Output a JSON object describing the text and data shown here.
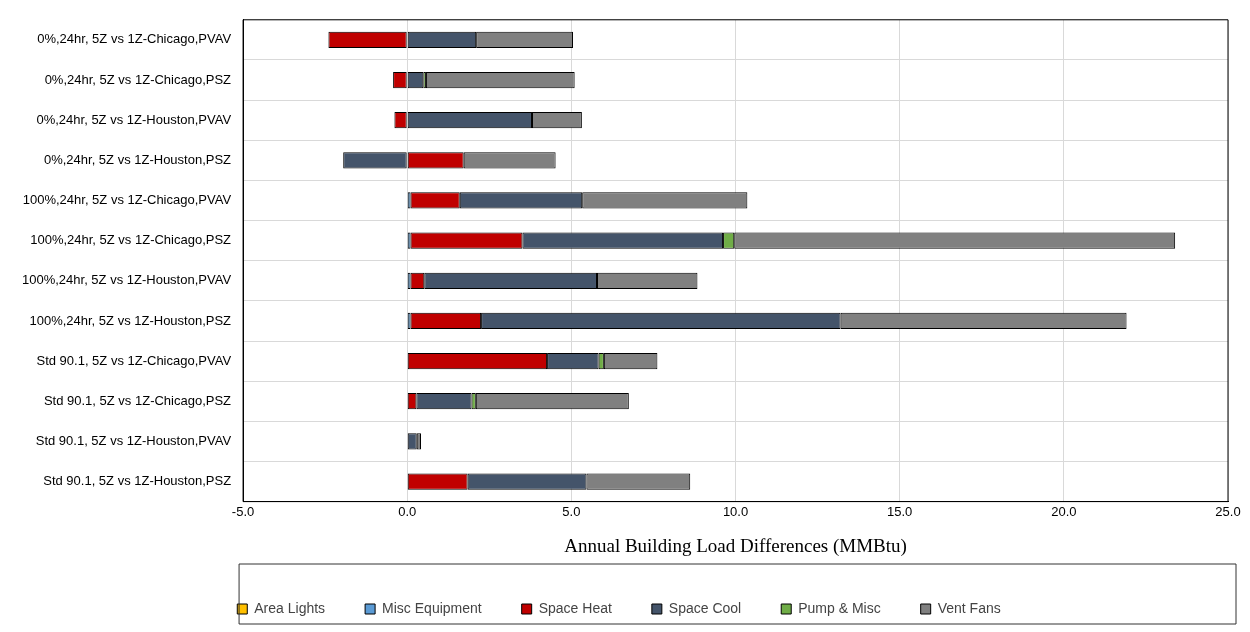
{
  "chart_data": {
    "type": "bar",
    "orientation": "horizontal",
    "stacked": true,
    "xlabel": "Annual Building Load Differences (MMBtu)",
    "categories": [
      "0%,24hr, 5Z vs 1Z-Chicago,PVAV",
      "0%,24hr, 5Z vs 1Z-Chicago,PSZ",
      "0%,24hr, 5Z vs 1Z-Houston,PVAV",
      "0%,24hr, 5Z vs 1Z-Houston,PSZ",
      "100%,24hr, 5Z vs 1Z-Chicago,PVAV",
      "100%,24hr, 5Z vs 1Z-Chicago,PSZ",
      "100%,24hr, 5Z vs 1Z-Houston,PVAV",
      "100%,24hr, 5Z vs 1Z-Houston,PSZ",
      "Std 90.1, 5Z vs 1Z-Chicago,PVAV",
      "Std 90.1, 5Z vs 1Z-Chicago,PSZ",
      "Std 90.1, 5Z vs 1Z-Houston,PVAV",
      "Std 90.1, 5Z vs 1Z-Houston,PSZ"
    ],
    "series": [
      {
        "name": "Area Lights",
        "color": "#ffc000",
        "values": [
          null,
          null,
          null,
          null,
          null,
          null,
          null,
          null,
          null,
          null,
          null,
          null
        ]
      },
      {
        "name": "Misc Equipment",
        "color": "#5b9bd5",
        "values": [
          null,
          null,
          null,
          null,
          0.1,
          0.1,
          0.1,
          0.1,
          null,
          null,
          null,
          null
        ]
      },
      {
        "name": "Space Heat",
        "color": "#c00000",
        "values": [
          -2.4,
          -0.43,
          -0.39,
          1.72,
          1.5,
          3.41,
          0.42,
          2.15,
          4.26,
          0.28,
          null,
          1.84
        ]
      },
      {
        "name": "Space Cool",
        "color": "#44546a",
        "values": [
          2.1,
          0.49,
          3.8,
          -1.95,
          3.73,
          6.11,
          5.26,
          10.95,
          1.57,
          1.68,
          0.29,
          3.62
        ]
      },
      {
        "name": "Pump & Misc",
        "color": "#70ad47",
        "values": [
          null,
          0.08,
          null,
          null,
          null,
          0.34,
          null,
          null,
          0.16,
          0.13,
          null,
          null
        ]
      },
      {
        "name": "Vent Fans",
        "color": "#808080",
        "values": [
          2.95,
          4.53,
          1.52,
          2.8,
          5.03,
          13.43,
          3.06,
          8.71,
          1.63,
          4.66,
          0.13,
          3.16
        ]
      }
    ],
    "xlim": [
      -5,
      25
    ],
    "xticks": [
      {
        "value": -5,
        "label": "-5.0"
      },
      {
        "value": 0,
        "label": "0.0"
      },
      {
        "value": 5,
        "label": "5.0"
      },
      {
        "value": 10,
        "label": "10.0"
      },
      {
        "value": 15,
        "label": "15.0"
      },
      {
        "value": 20,
        "label": "20.0"
      },
      {
        "value": 25,
        "label": "25.0"
      }
    ],
    "grid": true,
    "legend": "bottom"
  }
}
